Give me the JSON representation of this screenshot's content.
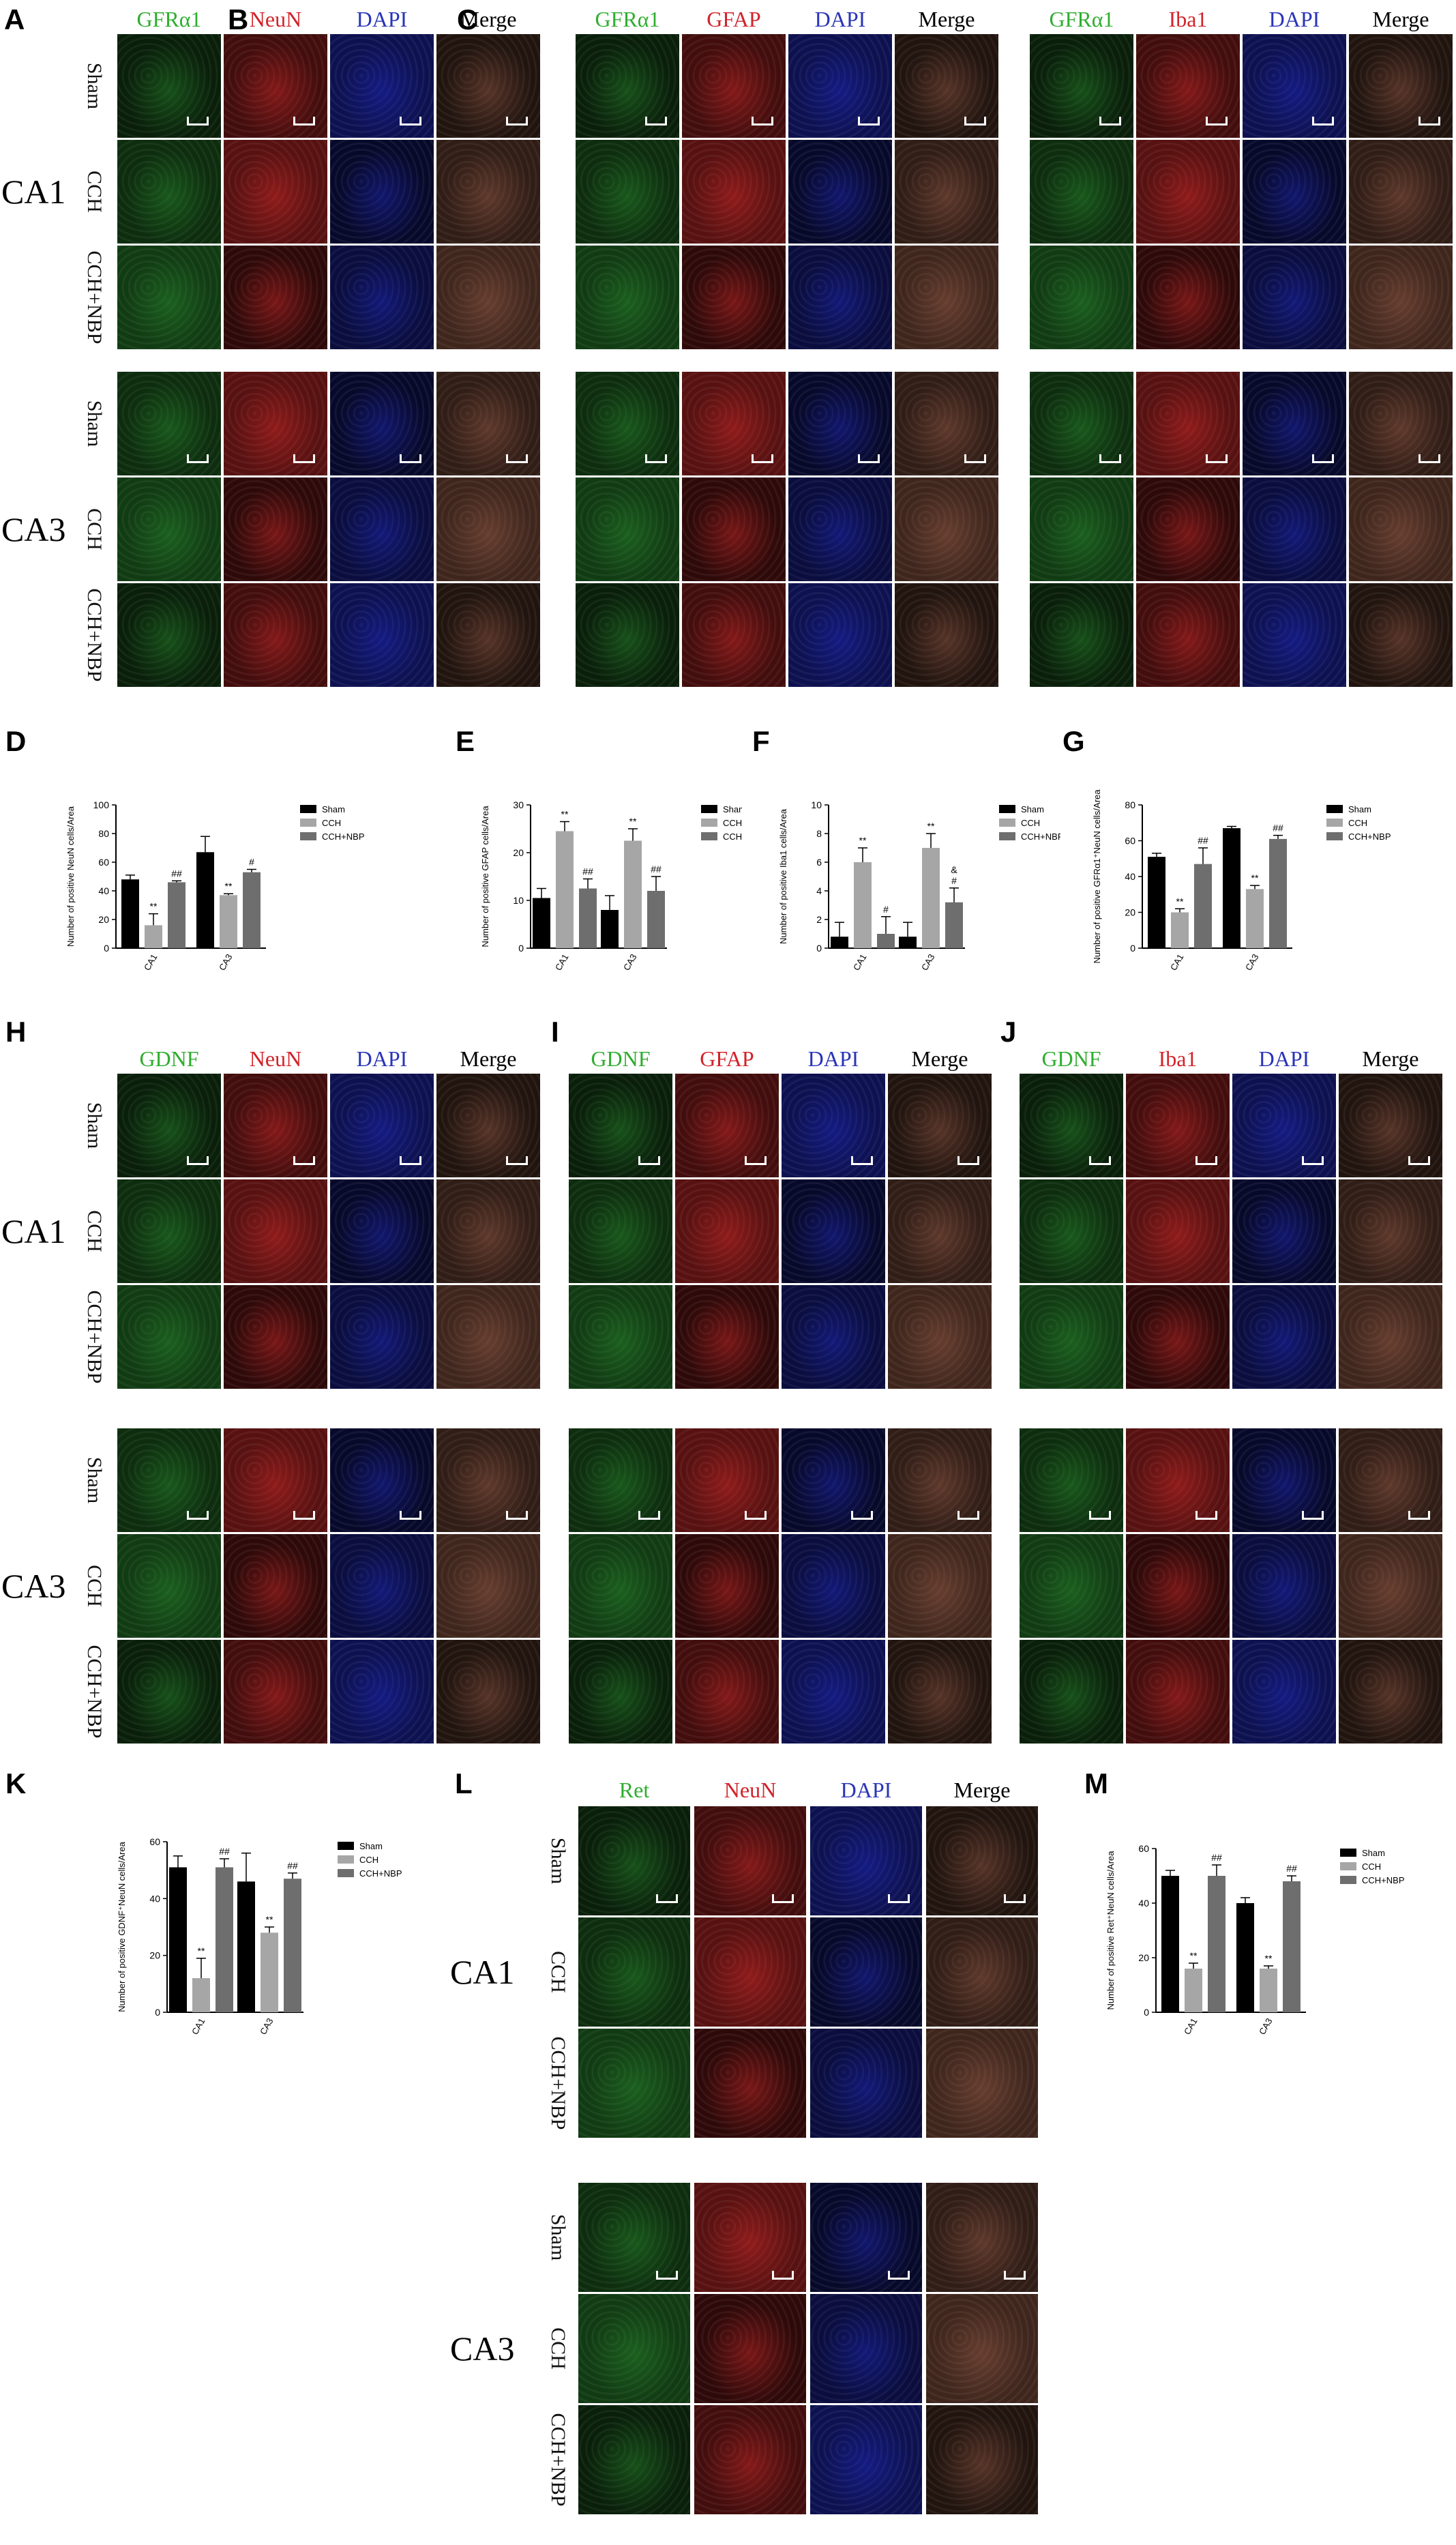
{
  "panel_letters": [
    "A",
    "B",
    "C",
    "D",
    "E",
    "F",
    "G",
    "H",
    "I",
    "J",
    "K",
    "L",
    "M"
  ],
  "micro_panels": [
    {
      "letter": "A",
      "headers": [
        {
          "text": "GFRα1",
          "color": "#2fae2f"
        },
        {
          "text": "NeuN",
          "color": "#d2232a"
        },
        {
          "text": "DAPI",
          "color": "#2a35b8"
        },
        {
          "text": "Merge",
          "color": "#000000"
        }
      ]
    },
    {
      "letter": "B",
      "headers": [
        {
          "text": "GFRα1",
          "color": "#2fae2f"
        },
        {
          "text": "GFAP",
          "color": "#d2232a"
        },
        {
          "text": "DAPI",
          "color": "#2a35b8"
        },
        {
          "text": "Merge",
          "color": "#000000"
        }
      ]
    },
    {
      "letter": "C",
      "headers": [
        {
          "text": "GFRα1",
          "color": "#2fae2f"
        },
        {
          "text": "Iba1",
          "color": "#d2232a"
        },
        {
          "text": "DAPI",
          "color": "#2a35b8"
        },
        {
          "text": "Merge",
          "color": "#000000"
        }
      ]
    },
    {
      "letter": "H",
      "headers": [
        {
          "text": "GDNF",
          "color": "#2fae2f"
        },
        {
          "text": "NeuN",
          "color": "#d2232a"
        },
        {
          "text": "DAPI",
          "color": "#2a35b8"
        },
        {
          "text": "Merge",
          "color": "#000000"
        }
      ]
    },
    {
      "letter": "I",
      "headers": [
        {
          "text": "GDNF",
          "color": "#2fae2f"
        },
        {
          "text": "GFAP",
          "color": "#d2232a"
        },
        {
          "text": "DAPI",
          "color": "#2a35b8"
        },
        {
          "text": "Merge",
          "color": "#000000"
        }
      ]
    },
    {
      "letter": "J",
      "headers": [
        {
          "text": "GDNF",
          "color": "#2fae2f"
        },
        {
          "text": "Iba1",
          "color": "#d2232a"
        },
        {
          "text": "DAPI",
          "color": "#2a35b8"
        },
        {
          "text": "Merge",
          "color": "#000000"
        }
      ]
    },
    {
      "letter": "L",
      "headers": [
        {
          "text": "Ret",
          "color": "#2fae2f"
        },
        {
          "text": "NeuN",
          "color": "#d2232a"
        },
        {
          "text": "DAPI",
          "color": "#2a35b8"
        },
        {
          "text": "Merge",
          "color": "#000000"
        }
      ]
    }
  ],
  "row_labels": [
    "Sham",
    "CCH",
    "CCH+NBP"
  ],
  "regions": [
    "CA1",
    "CA3"
  ],
  "chart_data": [
    {
      "panel": "D",
      "type": "bar",
      "ylabel": "Number of positive NeuN cells/Area",
      "categories": [
        "CA1",
        "CA3"
      ],
      "ylim": [
        0,
        100
      ],
      "yticks": [
        0,
        20,
        40,
        60,
        80,
        100
      ],
      "series": [
        {
          "name": "Sham",
          "color": "#000000",
          "values": [
            48,
            67
          ],
          "errors": [
            3,
            11
          ]
        },
        {
          "name": "CCH",
          "color": "#a6a6a6",
          "values": [
            16,
            37
          ],
          "errors": [
            8,
            1
          ]
        },
        {
          "name": "CCH+NBP",
          "color": "#6e6e6e",
          "values": [
            46,
            53
          ],
          "errors": [
            1,
            2
          ]
        }
      ],
      "annotations": [
        [
          "",
          "",
          ""
        ],
        [
          "",
          "",
          ""
        ]
      ],
      "sig": [
        [
          "",
          "**",
          "##"
        ],
        [
          "",
          "**",
          "#"
        ]
      ]
    },
    {
      "panel": "E",
      "type": "bar",
      "ylabel": "Number of positive GFAP cells/Area",
      "categories": [
        "CA1",
        "CA3"
      ],
      "ylim": [
        0,
        30
      ],
      "yticks": [
        0,
        10,
        20,
        30
      ],
      "series": [
        {
          "name": "Sham",
          "color": "#000000",
          "values": [
            10.5,
            8
          ],
          "errors": [
            2,
            3
          ]
        },
        {
          "name": "CCH",
          "color": "#a6a6a6",
          "values": [
            24.5,
            22.5
          ],
          "errors": [
            2,
            2.5
          ]
        },
        {
          "name": "CCH+NBP",
          "color": "#6e6e6e",
          "values": [
            12.5,
            12
          ],
          "errors": [
            2,
            3
          ]
        }
      ],
      "sig": [
        [
          "",
          "**",
          "##"
        ],
        [
          "",
          "**",
          "##"
        ]
      ]
    },
    {
      "panel": "F",
      "type": "bar",
      "ylabel": "Number of positive Iba1 cells/Area",
      "categories": [
        "CA1",
        "CA3"
      ],
      "ylim": [
        0,
        10
      ],
      "yticks": [
        0,
        2,
        4,
        6,
        8,
        10
      ],
      "series": [
        {
          "name": "Sham",
          "color": "#000000",
          "values": [
            0.8,
            0.8
          ],
          "errors": [
            1,
            1
          ]
        },
        {
          "name": "CCH",
          "color": "#a6a6a6",
          "values": [
            6,
            7
          ],
          "errors": [
            1,
            1
          ]
        },
        {
          "name": "CCH+NBP",
          "color": "#6e6e6e",
          "values": [
            1,
            3.2
          ],
          "errors": [
            1.2,
            1
          ]
        }
      ],
      "sig": [
        [
          "",
          "**",
          "#"
        ],
        [
          "",
          "**",
          "&\n#"
        ]
      ]
    },
    {
      "panel": "G",
      "type": "bar",
      "ylabel": "Number of positive GFRα1⁺NeuN cells/Area",
      "categories": [
        "CA1",
        "CA3"
      ],
      "ylim": [
        0,
        80
      ],
      "yticks": [
        0,
        20,
        40,
        60,
        80
      ],
      "series": [
        {
          "name": "Sham",
          "color": "#000000",
          "values": [
            51,
            67
          ],
          "errors": [
            2,
            1
          ]
        },
        {
          "name": "CCH",
          "color": "#a6a6a6",
          "values": [
            20,
            33
          ],
          "errors": [
            2,
            2
          ]
        },
        {
          "name": "CCH+NBP",
          "color": "#6e6e6e",
          "values": [
            47,
            61
          ],
          "errors": [
            9,
            2
          ]
        }
      ],
      "sig": [
        [
          "",
          "**",
          "##"
        ],
        [
          "",
          "**",
          "##"
        ]
      ]
    },
    {
      "panel": "K",
      "type": "bar",
      "ylabel": "Number of positive GDNF⁺NeuN cells/Area",
      "categories": [
        "CA1",
        "CA3"
      ],
      "ylim": [
        0,
        60
      ],
      "yticks": [
        0,
        20,
        40,
        60
      ],
      "series": [
        {
          "name": "Sham",
          "color": "#000000",
          "values": [
            51,
            46
          ],
          "errors": [
            4,
            10
          ]
        },
        {
          "name": "CCH",
          "color": "#a6a6a6",
          "values": [
            12,
            28
          ],
          "errors": [
            7,
            2
          ]
        },
        {
          "name": "CCH+NBP",
          "color": "#6e6e6e",
          "values": [
            51,
            47
          ],
          "errors": [
            3,
            2
          ]
        }
      ],
      "sig": [
        [
          "",
          "**",
          "##"
        ],
        [
          "",
          "**",
          "##"
        ]
      ]
    },
    {
      "panel": "M",
      "type": "bar",
      "ylabel": "Number of positive Ret⁺NeuN cells/Area",
      "categories": [
        "CA1",
        "CA3"
      ],
      "ylim": [
        0,
        60
      ],
      "yticks": [
        0,
        20,
        40,
        60
      ],
      "series": [
        {
          "name": "Sham",
          "color": "#000000",
          "values": [
            50,
            40
          ],
          "errors": [
            2,
            2
          ]
        },
        {
          "name": "CCH",
          "color": "#a6a6a6",
          "values": [
            16,
            16
          ],
          "errors": [
            2,
            1
          ]
        },
        {
          "name": "CCH+NBP",
          "color": "#6e6e6e",
          "values": [
            50,
            48
          ],
          "errors": [
            4,
            2
          ]
        }
      ],
      "sig": [
        [
          "",
          "**",
          "##"
        ],
        [
          "",
          "**",
          "##"
        ]
      ]
    }
  ]
}
